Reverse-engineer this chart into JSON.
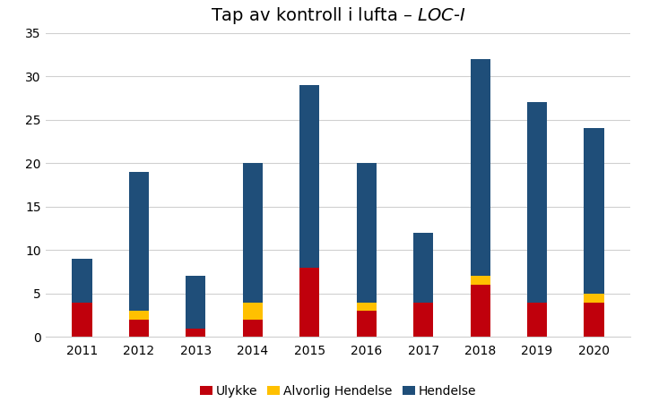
{
  "title": "Tap av kontroll i lufta – LOC-I",
  "years": [
    2011,
    2012,
    2013,
    2014,
    2015,
    2016,
    2017,
    2018,
    2019,
    2020
  ],
  "ulykke": [
    4,
    2,
    1,
    2,
    8,
    3,
    4,
    6,
    4,
    4
  ],
  "alvorlig_hendelse": [
    0,
    1,
    0,
    2,
    0,
    1,
    0,
    1,
    0,
    1
  ],
  "hendelse": [
    5,
    16,
    6,
    16,
    21,
    16,
    8,
    25,
    23,
    19
  ],
  "colors": {
    "ulykke": "#C0000C",
    "alvorlig_hendelse": "#FFC000",
    "hendelse": "#1F4E79"
  },
  "legend_labels": [
    "Ulykke",
    "Alvorlig Hendelse",
    "Hendelse"
  ],
  "ylim": [
    0,
    35
  ],
  "yticks": [
    0,
    5,
    10,
    15,
    20,
    25,
    30,
    35
  ],
  "bar_width": 0.35,
  "background_color": "#FFFFFF",
  "grid_color": "#D0D0D0"
}
